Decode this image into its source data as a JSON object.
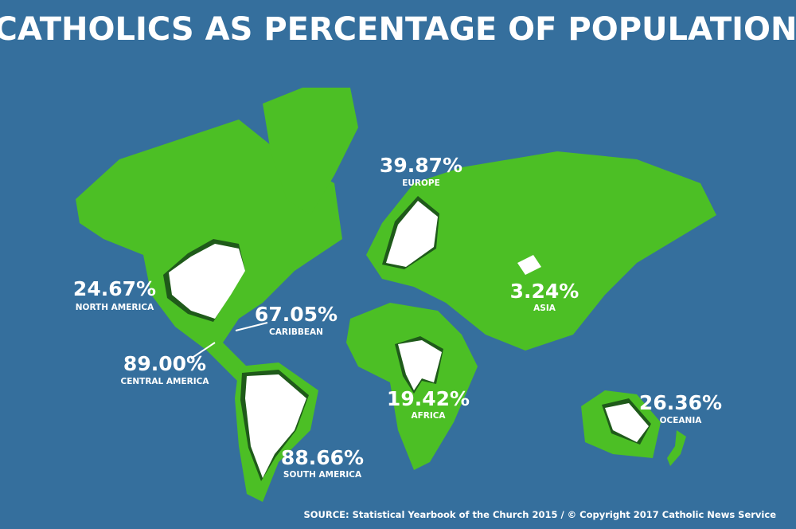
{
  "title": "CATHOLICS AS PERCENTAGE OF POPULATION",
  "regions": [
    {
      "value": "24.67%",
      "name": "NORTH AMERICA"
    },
    {
      "value": "67.05%",
      "name": "CARIBBEAN"
    },
    {
      "value": "89.00%",
      "name": "CENTRAL AMERICA"
    },
    {
      "value": "88.66%",
      "name": "SOUTH AMERICA"
    },
    {
      "value": "39.87%",
      "name": "EUROPE"
    },
    {
      "value": "19.42%",
      "name": "AFRICA"
    },
    {
      "value": "3.24%",
      "name": "ASIA"
    },
    {
      "value": "26.36%",
      "name": "OCEANIA"
    }
  ],
  "source": "SOURCE: Statistical Yearbook of the Church 2015 / © Copyright 2017 Catholic News Service"
}
